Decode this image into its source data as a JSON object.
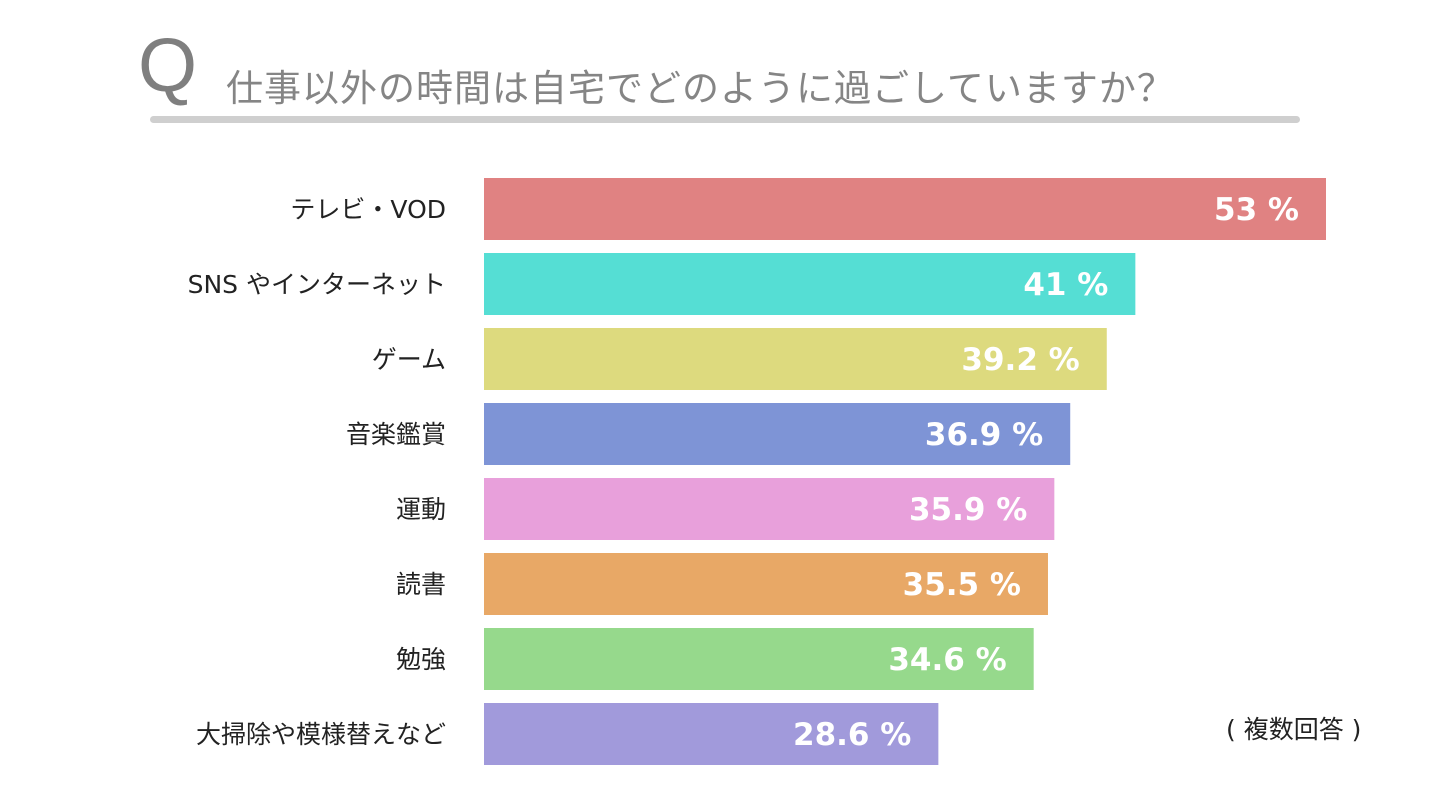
{
  "header": {
    "q_mark": "Q",
    "title": "仕事以外の時間は自宅でどのように過ごしていますか？"
  },
  "note": "( 複数回答 )",
  "chart_data": {
    "type": "bar",
    "orientation": "horizontal",
    "title": "仕事以外の時間は自宅でどのように過ごしていますか？",
    "categories": [
      "テレビ・VOD",
      "SNS やインターネット",
      "ゲーム",
      "音楽鑑賞",
      "運動",
      "読書",
      "勉強",
      "大掃除や模様替えなど"
    ],
    "values": [
      53,
      41,
      39.2,
      36.9,
      35.9,
      35.5,
      34.6,
      28.6
    ],
    "value_labels": [
      "53 %",
      "41 %",
      "39.2 %",
      "36.9 %",
      "35.9 %",
      "35.5 %",
      "34.6 %",
      "28.6 %"
    ],
    "colors": [
      "#E08282",
      "#55DED4",
      "#DDDA7E",
      "#7E94D6",
      "#E8A0DB",
      "#E8A866",
      "#96D98C",
      "#A19ADB"
    ],
    "unit": "%",
    "xlim": [
      0,
      53
    ],
    "grid": false
  }
}
